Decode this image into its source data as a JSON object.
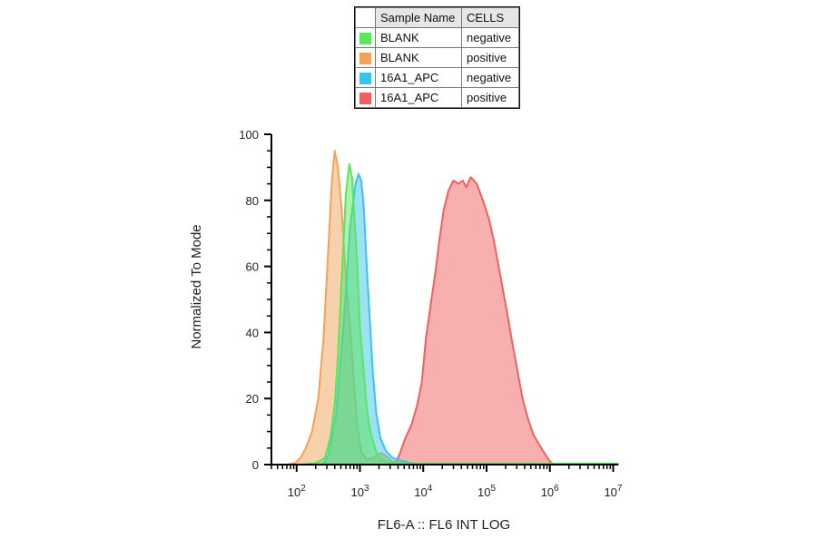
{
  "chart_data": {
    "type": "area",
    "title": "",
    "xlabel": "FL6-A :: FL6 INT LOG",
    "ylabel": "Normalized To Mode",
    "x_scale": "log",
    "xlim": [
      40,
      12000000
    ],
    "ylim": [
      0,
      100
    ],
    "x_tick_labels": [
      {
        "value": 100,
        "base": "10",
        "exp": "2"
      },
      {
        "value": 1000,
        "base": "10",
        "exp": "3"
      },
      {
        "value": 10000,
        "base": "10",
        "exp": "4"
      },
      {
        "value": 100000,
        "base": "10",
        "exp": "5"
      },
      {
        "value": 1000000,
        "base": "10",
        "exp": "6"
      },
      {
        "value": 10000000,
        "base": "10",
        "exp": "7"
      }
    ],
    "y_ticks": [
      "0",
      "20",
      "40",
      "60",
      "80",
      "100"
    ],
    "legend": {
      "headers": [
        "Sample Name",
        "CELLS"
      ],
      "placement": "top"
    },
    "series": [
      {
        "sample": "BLANK",
        "cells": "negative",
        "color": "#5ce65c",
        "points": [
          [
            120,
            0
          ],
          [
            200,
            0.5
          ],
          [
            280,
            2
          ],
          [
            340,
            8
          ],
          [
            400,
            18
          ],
          [
            450,
            33
          ],
          [
            520,
            58
          ],
          [
            600,
            82
          ],
          [
            680,
            91
          ],
          [
            750,
            87
          ],
          [
            820,
            74
          ],
          [
            900,
            62
          ],
          [
            1000,
            42
          ],
          [
            1150,
            28
          ],
          [
            1300,
            16
          ],
          [
            1500,
            9
          ],
          [
            1800,
            4
          ],
          [
            2200,
            1.5
          ],
          [
            3000,
            0.5
          ],
          [
            5000,
            0.3
          ],
          [
            12000000,
            0.3
          ]
        ]
      },
      {
        "sample": "BLANK",
        "cells": "positive",
        "color": "#f0a35a",
        "points": [
          [
            70,
            0
          ],
          [
            95,
            0.5
          ],
          [
            115,
            2
          ],
          [
            140,
            5
          ],
          [
            175,
            10
          ],
          [
            220,
            20
          ],
          [
            265,
            38
          ],
          [
            310,
            62
          ],
          [
            360,
            86
          ],
          [
            400,
            95
          ],
          [
            450,
            90
          ],
          [
            520,
            76
          ],
          [
            600,
            56
          ],
          [
            700,
            42
          ],
          [
            800,
            26
          ],
          [
            900,
            12
          ],
          [
            1050,
            4
          ],
          [
            1300,
            1.5
          ],
          [
            1600,
            2
          ],
          [
            1900,
            3
          ],
          [
            2200,
            3.5
          ],
          [
            2600,
            2.5
          ],
          [
            3200,
            1
          ],
          [
            4500,
            0.3
          ],
          [
            12000000,
            0.2
          ]
        ]
      },
      {
        "sample": "16A1_APC",
        "cells": "negative",
        "color": "#3cc3ec",
        "points": [
          [
            260,
            0
          ],
          [
            320,
            3
          ],
          [
            420,
            15
          ],
          [
            550,
            42
          ],
          [
            700,
            72
          ],
          [
            850,
            85
          ],
          [
            950,
            88
          ],
          [
            1050,
            86
          ],
          [
            1150,
            78
          ],
          [
            1300,
            58
          ],
          [
            1450,
            42
          ],
          [
            1600,
            28
          ],
          [
            1800,
            16
          ],
          [
            2100,
            8
          ],
          [
            2600,
            4
          ],
          [
            3300,
            2
          ],
          [
            4500,
            1.2
          ],
          [
            6000,
            0.6
          ],
          [
            9000,
            0
          ],
          [
            12000000,
            0
          ]
        ]
      },
      {
        "sample": "16A1_APC",
        "cells": "positive",
        "color": "#f06060",
        "points": [
          [
            3500,
            0
          ],
          [
            4200,
            3
          ],
          [
            5200,
            8
          ],
          [
            6500,
            12
          ],
          [
            8000,
            18
          ],
          [
            9500,
            25
          ],
          [
            11000,
            38
          ],
          [
            13000,
            48
          ],
          [
            15500,
            58
          ],
          [
            18000,
            68
          ],
          [
            21000,
            77
          ],
          [
            25000,
            83
          ],
          [
            30000,
            86
          ],
          [
            36000,
            85
          ],
          [
            42000,
            86
          ],
          [
            48000,
            84
          ],
          [
            56000,
            87
          ],
          [
            63000,
            86
          ],
          [
            70000,
            85
          ],
          [
            80000,
            82
          ],
          [
            95000,
            78
          ],
          [
            110000,
            74
          ],
          [
            130000,
            68
          ],
          [
            155000,
            60
          ],
          [
            185000,
            52
          ],
          [
            220000,
            44
          ],
          [
            260000,
            36
          ],
          [
            310000,
            28
          ],
          [
            370000,
            20
          ],
          [
            450000,
            14
          ],
          [
            550000,
            9
          ],
          [
            680000,
            6
          ],
          [
            850000,
            3
          ],
          [
            1000000,
            1
          ],
          [
            1150000,
            0
          ]
        ]
      }
    ]
  }
}
